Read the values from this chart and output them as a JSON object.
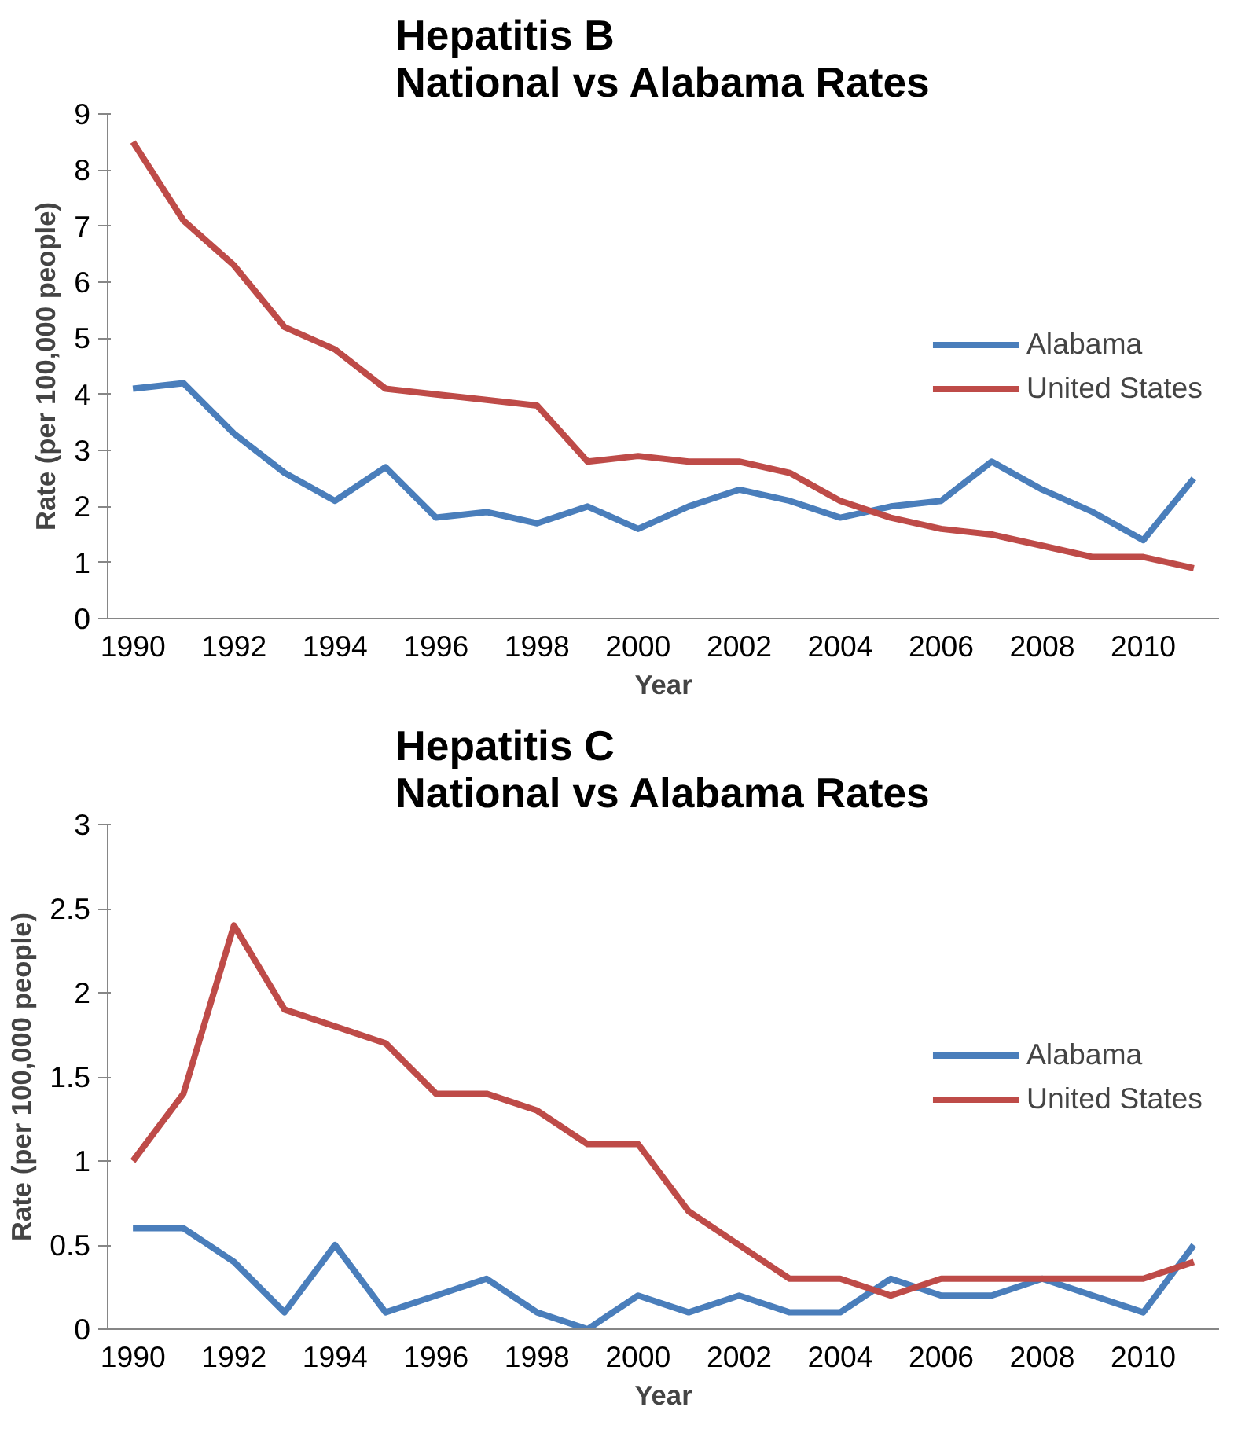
{
  "chart_data": [
    {
      "type": "line",
      "title": "Hepatitis B\nNational vs Alabama Rates",
      "xlabel": "Year",
      "ylabel": "Rate (per 100,000 people)",
      "categories": [
        "1990",
        null,
        "1992",
        null,
        "1994",
        null,
        "1996",
        null,
        "1998",
        null,
        "2000",
        null,
        "2002",
        null,
        "2004",
        null,
        "2006",
        null,
        "2008",
        null,
        "2010",
        null
      ],
      "series": [
        {
          "name": "Alabama",
          "color": "#4a7ebb",
          "values": [
            4.1,
            4.2,
            3.3,
            2.6,
            2.1,
            2.7,
            1.8,
            1.9,
            1.7,
            2.0,
            1.6,
            2.0,
            2.3,
            2.1,
            1.8,
            2.0,
            2.1,
            2.8,
            2.3,
            1.9,
            1.4,
            2.5
          ]
        },
        {
          "name": "United States",
          "color": "#be4b48",
          "values": [
            8.5,
            7.1,
            6.3,
            5.2,
            4.8,
            4.1,
            4.0,
            3.9,
            3.8,
            2.8,
            2.9,
            2.8,
            2.8,
            2.6,
            2.1,
            1.8,
            1.6,
            1.5,
            1.3,
            1.1,
            1.1,
            0.9
          ]
        }
      ],
      "ylim": [
        0,
        9
      ],
      "yticks": [
        0,
        1,
        2,
        3,
        4,
        5,
        6,
        7,
        8,
        9
      ],
      "grid": false,
      "legend": "right",
      "marker": "none",
      "line_style": "solid"
    },
    {
      "type": "line",
      "title": "Hepatitis C\nNational vs Alabama Rates",
      "xlabel": "Year",
      "ylabel": "Rate (per 100,000 people)",
      "categories": [
        "1990",
        null,
        "1992",
        null,
        "1994",
        null,
        "1996",
        null,
        "1998",
        null,
        "2000",
        null,
        "2002",
        null,
        "2004",
        null,
        "2006",
        null,
        "2008",
        null,
        "2010",
        null
      ],
      "series": [
        {
          "name": "Alabama",
          "color": "#4a7ebb",
          "values": [
            0.6,
            0.6,
            0.4,
            0.1,
            0.5,
            0.1,
            0.2,
            0.3,
            0.1,
            0.0,
            0.2,
            0.1,
            0.2,
            0.1,
            0.1,
            0.3,
            0.2,
            0.2,
            0.3,
            0.2,
            0.1,
            0.5
          ]
        },
        {
          "name": "United States",
          "color": "#be4b48",
          "values": [
            1.0,
            1.4,
            2.4,
            1.9,
            1.8,
            1.7,
            1.4,
            1.4,
            1.3,
            1.1,
            1.1,
            0.7,
            0.5,
            0.3,
            0.3,
            0.2,
            0.3,
            0.3,
            0.3,
            0.3,
            0.3,
            0.4
          ]
        }
      ],
      "ylim": [
        0,
        3
      ],
      "yticks": [
        0,
        0.5,
        1,
        1.5,
        2,
        2.5,
        3
      ],
      "grid": false,
      "legend": "right",
      "marker": "none",
      "line_style": "solid"
    }
  ]
}
